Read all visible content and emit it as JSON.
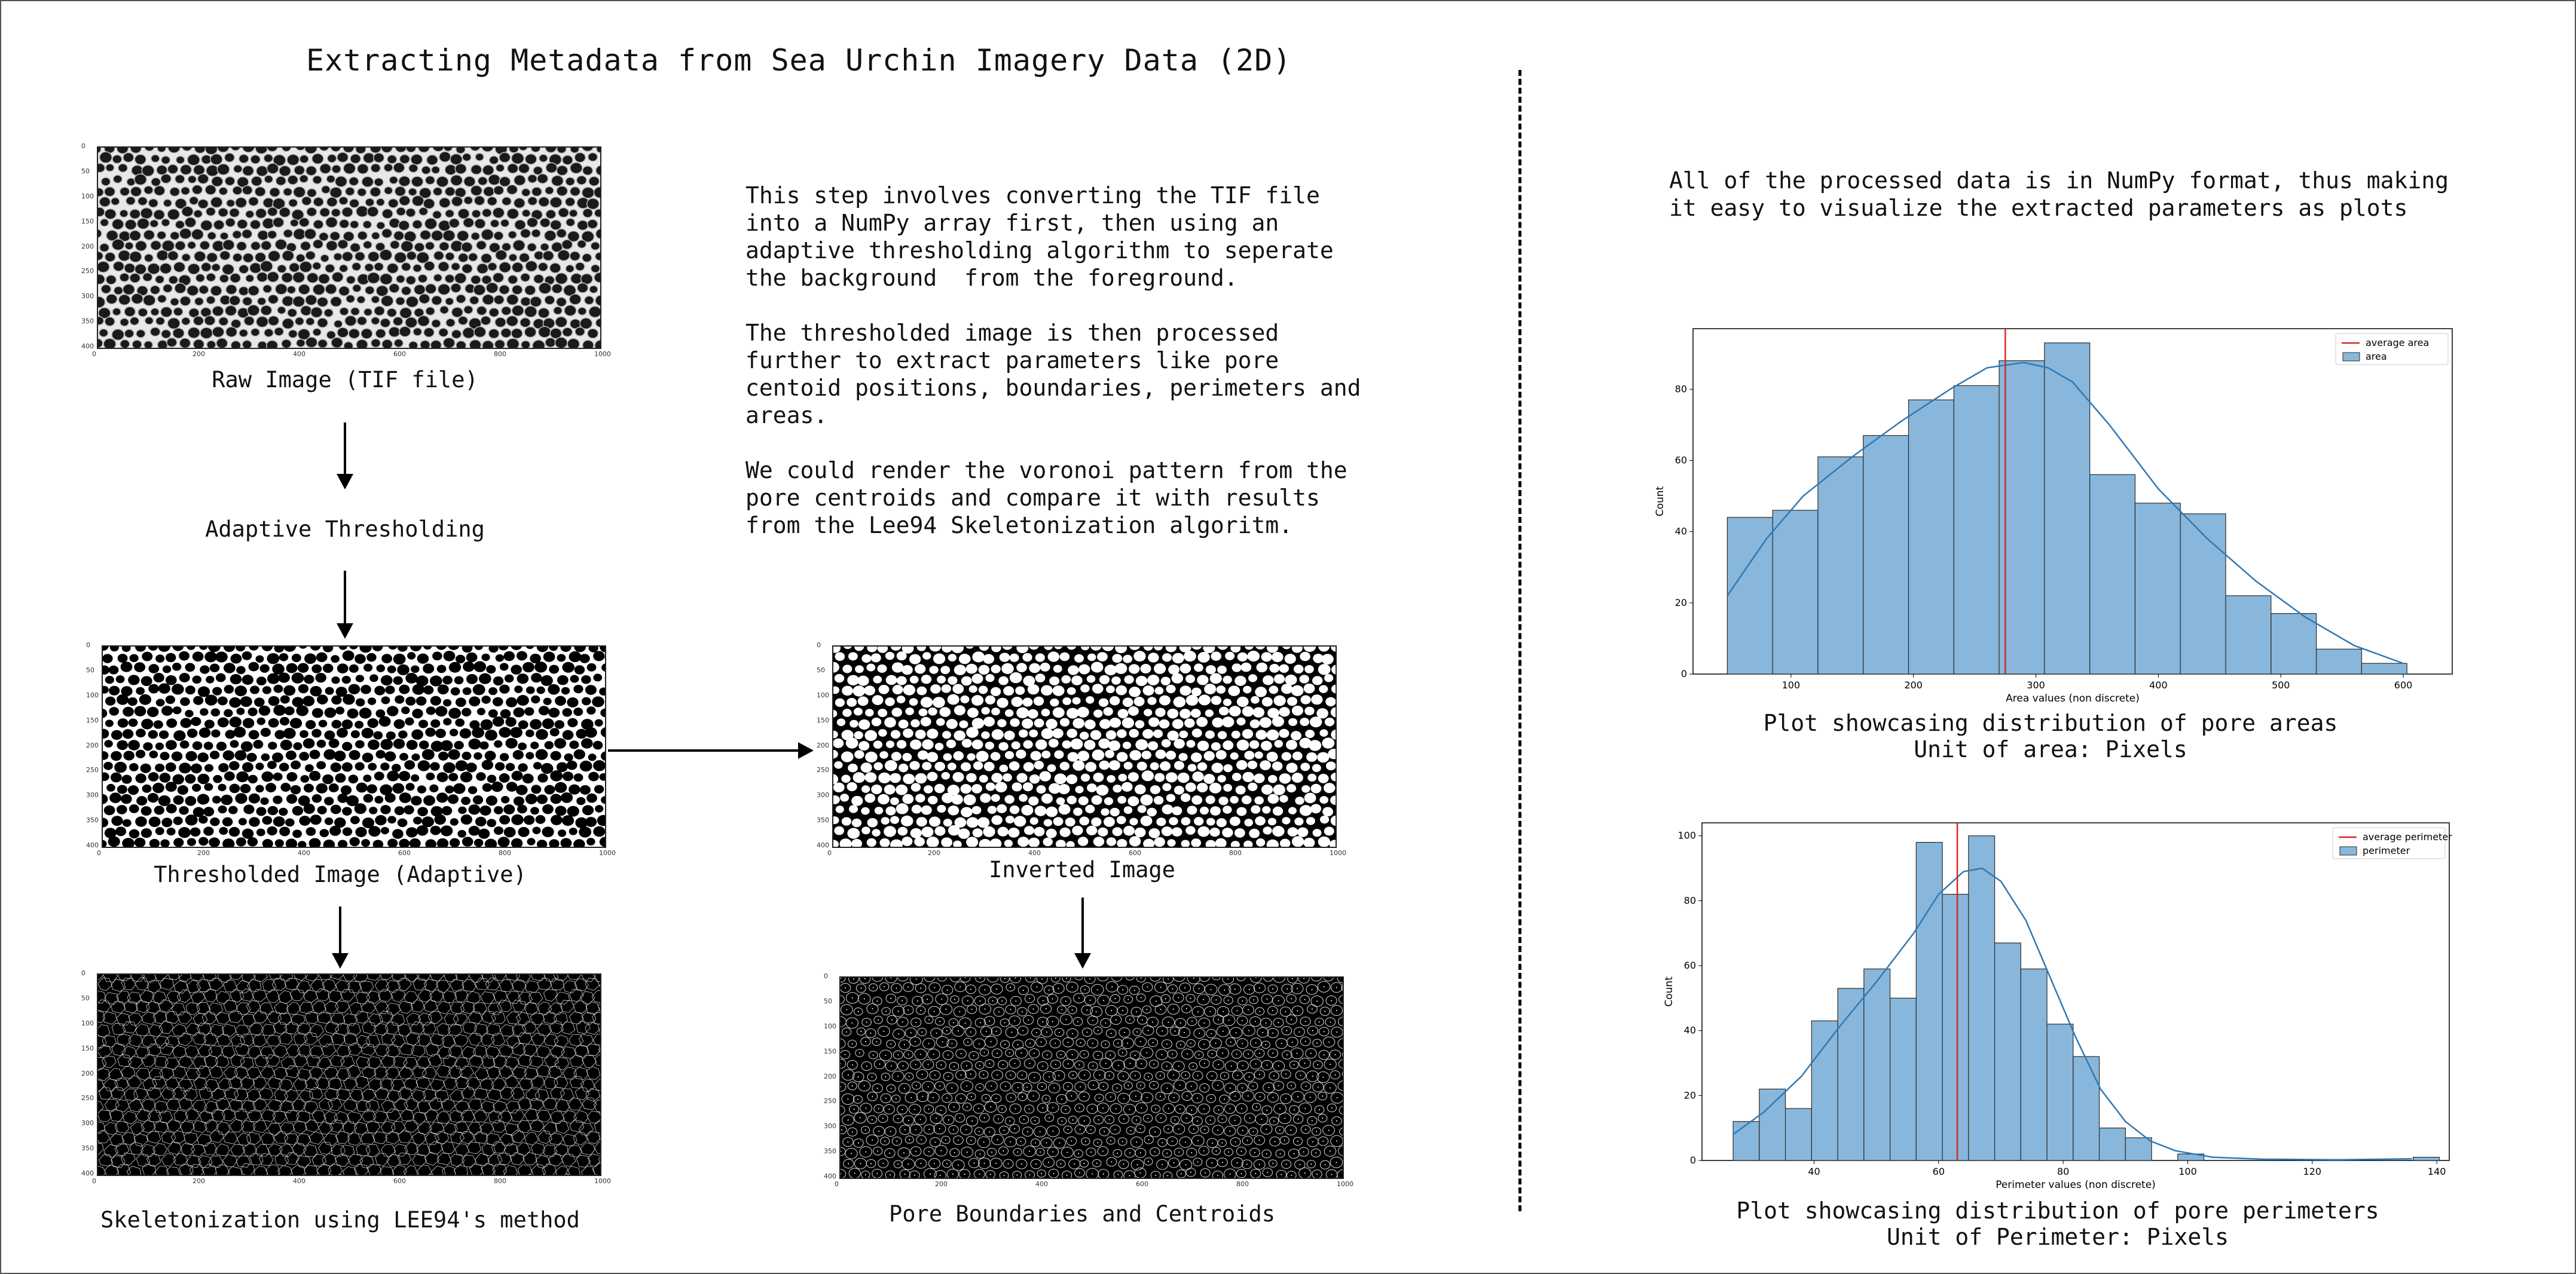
{
  "title": "Extracting Metadata from Sea Urchin Imagery Data (2D)",
  "left": {
    "raw_caption": "Raw Image (TIF file)",
    "adaptive_step": "Adaptive Thresholding",
    "thresholded_caption": "Thresholded Image (Adaptive)",
    "skeleton_caption": "Skeletonization using LEE94's method",
    "inverted_caption": "Inverted Image",
    "boundaries_caption": "Pore Boundaries and Centroids",
    "x_ticks": [
      "0",
      "200",
      "400",
      "600",
      "800",
      "1000"
    ],
    "y_ticks": [
      "0",
      "50",
      "100",
      "150",
      "200",
      "250",
      "300",
      "350",
      "400"
    ]
  },
  "description": {
    "p1": "This step involves converting the TIF file\ninto a NumPy array first, then using an\nadaptive thresholding algorithm to seperate\nthe background  from the foreground.",
    "p2": "The thresholded image is then processed\nfurther to extract parameters like pore\ncentoid positions, boundaries, perimeters and\nareas.",
    "p3": "We could render the voronoi pattern from the\npore centroids and compare it with results\nfrom the Lee94 Skeletonization algoritm."
  },
  "right": {
    "intro": "All of the processed data is in NumPy format, thus making\nit easy to visualize the extracted parameters as plots",
    "area_caption_1": "Plot showcasing distribution of pore areas",
    "area_caption_2": "Unit of area: Pixels",
    "perim_caption_1": "Plot showcasing distribution of pore perimeters",
    "perim_caption_2": "Unit of Perimeter: Pixels"
  },
  "colors": {
    "bar": "#88b7db",
    "bar_edge": "#2b2b2b",
    "kde": "#2f79b5",
    "mean_line": "#d62728"
  },
  "chart_data": [
    {
      "type": "bar",
      "title": "",
      "xlabel": "Area values (non discrete)",
      "ylabel": "Count",
      "xlim": [
        20,
        640
      ],
      "ylim": [
        0,
        97
      ],
      "x_ticks": [
        100,
        200,
        300,
        400,
        500,
        600
      ],
      "y_ticks": [
        0,
        20,
        40,
        60,
        80
      ],
      "bin_edges": [
        48,
        85,
        122,
        159,
        196,
        233,
        270,
        307,
        344,
        381,
        418,
        455,
        492,
        529,
        566,
        603
      ],
      "series": [
        {
          "name": "area",
          "values": [
            44,
            46,
            61,
            67,
            77,
            81,
            88,
            93,
            56,
            48,
            45,
            22,
            17,
            7,
            3
          ]
        }
      ],
      "kde": {
        "x": [
          48,
          80,
          110,
          150,
          190,
          230,
          260,
          290,
          310,
          330,
          360,
          400,
          440,
          480,
          520,
          560,
          600
        ],
        "y": [
          22,
          38,
          50,
          61,
          71,
          80,
          86,
          87.5,
          86,
          82,
          70,
          52,
          38,
          26,
          16,
          8,
          3
        ]
      },
      "mean_line": {
        "name": "average area",
        "value": 275
      },
      "legend": "top-right"
    },
    {
      "type": "bar",
      "title": "",
      "xlabel": "Perimeter values (non discrete)",
      "ylabel": "Count",
      "xlim": [
        22,
        142
      ],
      "ylim": [
        0,
        104
      ],
      "x_ticks": [
        40,
        60,
        80,
        100,
        120,
        140
      ],
      "y_ticks": [
        0,
        20,
        40,
        60,
        80,
        100
      ],
      "bin_edges": [
        27,
        31.2,
        35.4,
        39.6,
        43.8,
        48,
        52.2,
        56.4,
        60.6,
        64.8,
        69,
        73.2,
        77.4,
        81.6,
        85.8,
        90,
        94.2,
        98.4,
        102.6,
        106.8,
        111,
        115.2,
        119.4,
        123.6,
        127.8,
        132,
        136.2,
        140.4
      ],
      "series": [
        {
          "name": "perimeter",
          "values": [
            12,
            22,
            16,
            43,
            53,
            59,
            50,
            98,
            82,
            100,
            67,
            59,
            42,
            32,
            10,
            7,
            0,
            2,
            0,
            0,
            0,
            0,
            0,
            0,
            0,
            0,
            1
          ]
        }
      ],
      "kde": {
        "x": [
          27,
          32,
          38,
          44,
          50,
          56,
          60,
          64,
          67,
          70,
          74,
          78,
          82,
          86,
          90,
          94,
          98,
          104,
          112,
          124,
          136
        ],
        "y": [
          8,
          15,
          26,
          41,
          55,
          70,
          82,
          89,
          90,
          86,
          74,
          56,
          38,
          22,
          12,
          6,
          3,
          1,
          0.4,
          0.2,
          0.5
        ]
      },
      "mean_line": {
        "name": "average perimeter",
        "value": 63
      },
      "legend": "top-right"
    }
  ]
}
